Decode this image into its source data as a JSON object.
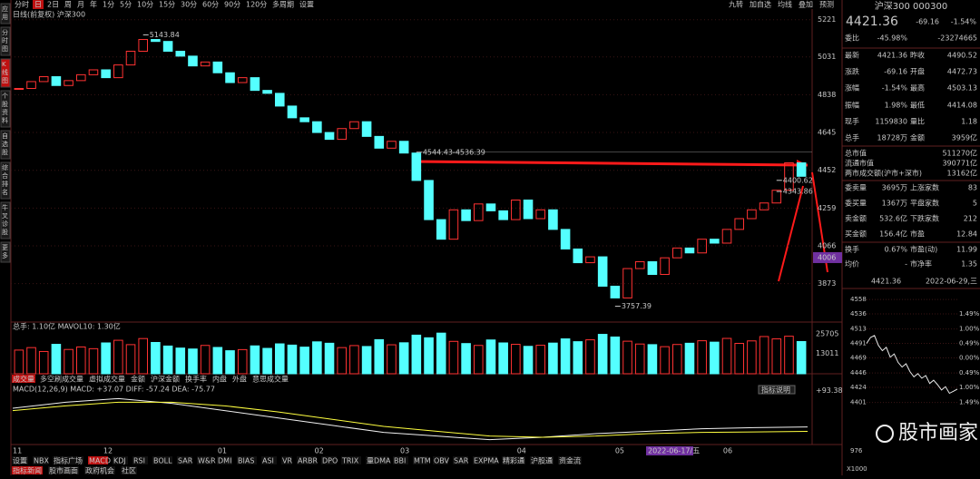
{
  "toolbar": {
    "tabs": [
      "分时",
      "日",
      "2日",
      "周",
      "月",
      "年",
      "1分",
      "5分",
      "10分",
      "15分",
      "30分",
      "60分",
      "90分",
      "120分",
      "多周期",
      "设置"
    ],
    "right": [
      "九转",
      "加自选",
      "均线",
      "叠加",
      "预测"
    ]
  },
  "side_tabs": [
    "应用",
    "分时图",
    "K线图",
    "个股资料",
    "自选股",
    "综合排名",
    "牛叉诊股",
    "更多"
  ],
  "chart_title": "日线(前复权)  沪深300",
  "price_chart": {
    "ylim": [
      3700,
      5280
    ],
    "yticks": [
      5221,
      5031,
      4838,
      4645,
      4452,
      4259,
      4066,
      3873
    ],
    "highlight_tick": 4006,
    "up_color": "#ff3232",
    "down_color": "#54ffff",
    "closes": [
      4870,
      4905,
      4930,
      4885,
      4910,
      4940,
      4965,
      4925,
      4990,
      5060,
      5120,
      5110,
      5060,
      5035,
      4985,
      5005,
      4950,
      4900,
      4925,
      4860,
      4845,
      4780,
      4720,
      4700,
      4645,
      4610,
      4665,
      4700,
      4625,
      4565,
      4600,
      4540,
      4400,
      4200,
      4100,
      4250,
      4195,
      4280,
      4245,
      4200,
      4300,
      4205,
      4250,
      4150,
      4050,
      3980,
      4010,
      3860,
      3800,
      3950,
      3985,
      3920,
      4005,
      4055,
      4030,
      4100,
      4080,
      4150,
      4205,
      4250,
      4285,
      4350,
      4490,
      4421.36
    ],
    "annotations": [
      {
        "value": 5143.84,
        "label": "5143.84"
      },
      {
        "value": 4544.43,
        "label": "4544.43-4536.39"
      },
      {
        "value": 4400.62,
        "label": "4400.62"
      },
      {
        "value": 4343.86,
        "label": "4343.86"
      },
      {
        "value": 3757.39,
        "label": "3757.39"
      }
    ],
    "months": [
      "11",
      "12",
      "01",
      "02",
      "03",
      "04",
      "05",
      "06"
    ],
    "cursor_date": "2022-06-17/五"
  },
  "volume": {
    "label": "总手: 1.10亿  MAVOL10: 1.30亿",
    "ylim": [
      0,
      33200
    ],
    "yticks": [
      25705,
      13011
    ],
    "values": [
      15200,
      16800,
      14300,
      18900,
      15600,
      17200,
      16100,
      19800,
      21500,
      18700,
      22600,
      20100,
      17800,
      16500,
      15900,
      18200,
      16900,
      14800,
      15500,
      17900,
      16300,
      19200,
      18400,
      17100,
      20500,
      19600,
      16800,
      18100,
      17500,
      21900,
      18600,
      19900,
      24800,
      23100,
      26100,
      20800,
      19400,
      18200,
      21700,
      19800,
      18900,
      17600,
      18300,
      19700,
      22400,
      20600,
      21800,
      25300,
      23600,
      20900,
      19100,
      18700,
      17400,
      18800,
      19600,
      21200,
      20300,
      22700,
      19500,
      21100,
      23900,
      22400,
      24100,
      20700
    ]
  },
  "volume_tabs": [
    "成交量",
    "多空刷成交量",
    "虚拟成交量",
    "金额",
    "沪深金额",
    "换手率",
    "内盘",
    "外盘",
    "意思成交量"
  ],
  "macd": {
    "label": "MACD(12,26,9)  MACD: +37.07  DIFF: -57.24  DEA: -75.77",
    "button": "指标说明",
    "ylim": [
      -130,
      110
    ],
    "yticks": [
      {
        "value": 93.38,
        "label": "+93.38"
      }
    ],
    "diff": [
      20,
      45,
      60,
      40,
      10,
      -20,
      -50,
      -80,
      -95,
      -110,
      -100,
      -85,
      -75,
      -65,
      -60,
      -57.24
    ],
    "dea": [
      10,
      30,
      45,
      45,
      30,
      5,
      -25,
      -55,
      -75,
      -95,
      -100,
      -95,
      -85,
      -80,
      -78,
      -75.77
    ]
  },
  "indicator_tabs": [
    "设置",
    "NBX",
    "指标广场",
    "MACD",
    "KDJ",
    "RSI",
    "BOLL",
    "SAR",
    "W&R",
    "DMI",
    "BIAS",
    "ASI",
    "VR",
    "ARBR",
    "DPO",
    "TRIX",
    "量DMA",
    "BBI",
    "MTM",
    "OBV",
    "SAR",
    "EXPMA",
    "精彩通",
    "沪股通",
    "资金流"
  ],
  "bottom_tabs": [
    "指标新闻",
    "股市画面",
    "政府机会",
    "社区"
  ],
  "quote": {
    "name": "沪深300 000300",
    "price": "4421.36",
    "change": "-69.16",
    "pct": "-1.54%",
    "rows": [
      {
        "cells": [
          "委比",
          "-45.98%",
          "",
          "-23274665"
        ],
        "colors": [
          "#c8c8c8",
          "#00e000",
          "#c8c8c8",
          "#00e000"
        ]
      },
      {
        "cells": [
          "最新",
          "4421.36",
          "昨收",
          "4490.52"
        ],
        "colors": [
          "#c8c8c8",
          "#00e000",
          "#c8c8c8",
          "#e8e8e8"
        ]
      },
      {
        "cells": [
          "涨跌",
          "-69.16",
          "开盘",
          "4472.73"
        ],
        "colors": [
          "#c8c8c8",
          "#00e000",
          "#c8c8c8",
          "#00e000"
        ]
      },
      {
        "cells": [
          "涨幅",
          "-1.54%",
          "最高",
          "4503.13"
        ],
        "colors": [
          "#c8c8c8",
          "#00e000",
          "#c8c8c8",
          "#ff3232"
        ]
      },
      {
        "cells": [
          "振幅",
          "1.98%",
          "最低",
          "4414.08"
        ],
        "colors": [
          "#c8c8c8",
          "#e8e8e8",
          "#c8c8c8",
          "#00e000"
        ]
      },
      {
        "cells": [
          "现手",
          "1159830",
          "量比",
          "1.18"
        ],
        "colors": [
          "#c8c8c8",
          "#ffff40",
          "#c8c8c8",
          "#ff3232"
        ]
      },
      {
        "cells": [
          "总手",
          "18728万",
          "金额",
          "3959亿"
        ],
        "colors": [
          "#c8c8c8",
          "#ffff40",
          "#c8c8c8",
          "#ffff40"
        ]
      },
      {
        "cells": [
          "总市值",
          "",
          "",
          "511270亿"
        ],
        "colors": [
          "#c8c8c8",
          "#c8c8c8",
          "#c8c8c8",
          "#ffff40"
        ]
      },
      {
        "cells": [
          "流通市值",
          "",
          "",
          "390771亿"
        ],
        "colors": [
          "#c8c8c8",
          "#c8c8c8",
          "#c8c8c8",
          "#ffff40"
        ]
      },
      {
        "cells": [
          "两市成交额(沪市+深市)",
          "",
          "",
          "13162亿"
        ],
        "colors": [
          "#c8c8c8",
          "#c8c8c8",
          "#c8c8c8",
          "#ffff40"
        ]
      },
      {
        "cells": [
          "委卖量",
          "3695万",
          "上涨家数",
          "83"
        ],
        "colors": [
          "#c8c8c8",
          "#ffff40",
          "#c8c8c8",
          "#ff3232"
        ]
      },
      {
        "cells": [
          "委买量",
          "1367万",
          "平盘家数",
          "5"
        ],
        "colors": [
          "#c8c8c8",
          "#ffff40",
          "#c8c8c8",
          "#e8e8e8"
        ]
      },
      {
        "cells": [
          "卖金额",
          "532.6亿",
          "下跌家数",
          "212"
        ],
        "colors": [
          "#c8c8c8",
          "#ffff40",
          "#c8c8c8",
          "#00e000"
        ]
      },
      {
        "cells": [
          "买金额",
          "156.4亿",
          "市盈",
          "12.84"
        ],
        "colors": [
          "#c8c8c8",
          "#ffff40",
          "#c8c8c8",
          "#e8e8e8"
        ]
      },
      {
        "cells": [
          "换手",
          "0.67%",
          "市盈(动)",
          "11.99"
        ],
        "colors": [
          "#c8c8c8",
          "#ffff40",
          "#c8c8c8",
          "#e8e8e8"
        ]
      },
      {
        "cells": [
          "均价",
          "-",
          "市净率",
          "1.35"
        ],
        "colors": [
          "#c8c8c8",
          "#e8e8e8",
          "#c8c8c8",
          "#e8e8e8"
        ]
      }
    ],
    "foot": [
      "4421.36",
      "2022-06-29,三"
    ]
  },
  "intraday": {
    "ylim": [
      4395,
      4565
    ],
    "yticks": [
      4558,
      4536,
      4513,
      4491,
      4469,
      4446,
      4424,
      4401
    ],
    "pct_labels": [
      "1.49%",
      "1.00%",
      "0.49%",
      "0.00%",
      "0.49%",
      "1.00%",
      "1.49%"
    ],
    "volume_labels": [
      "976",
      "X1000"
    ],
    "values": [
      4491,
      4500,
      4503,
      4488,
      4480,
      4485,
      4470,
      4475,
      4462,
      4455,
      4460,
      4448,
      4440,
      4445,
      4438,
      4442,
      4430,
      4435,
      4428,
      4420,
      4425,
      4415,
      4418,
      4421.36
    ]
  },
  "watermark": "股市画家"
}
